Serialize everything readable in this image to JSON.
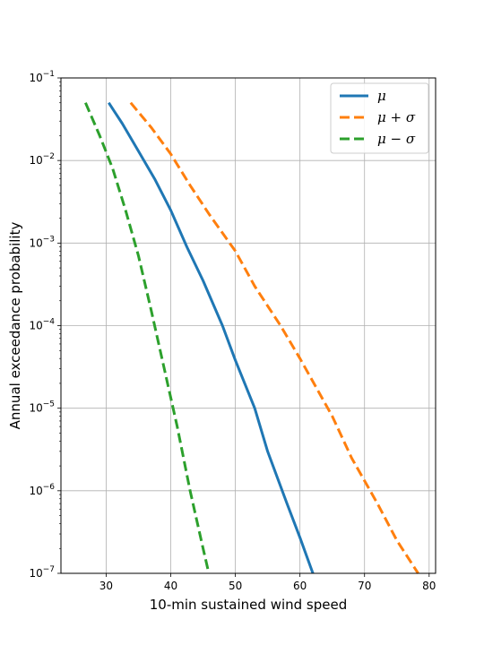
{
  "chart_data": {
    "type": "line",
    "title": "",
    "xlabel": "10-min sustained wind speed",
    "ylabel": "Annual exceedance probability",
    "xlim": [
      23,
      81
    ],
    "ylim": [
      1e-07,
      0.1
    ],
    "yscale": "log",
    "grid": true,
    "legend_position": "top-right",
    "x_ticks": [
      30,
      40,
      50,
      60,
      70,
      80
    ],
    "x_tick_labels": [
      "30",
      "40",
      "50",
      "60",
      "70",
      "80"
    ],
    "y_ticks": [
      0.1,
      0.01,
      0.001,
      0.0001,
      1e-05,
      1e-06,
      1e-07
    ],
    "y_tick_labels": [
      {
        "base": "10",
        "exp": "−1"
      },
      {
        "base": "10",
        "exp": "−2"
      },
      {
        "base": "10",
        "exp": "−3"
      },
      {
        "base": "10",
        "exp": "−4"
      },
      {
        "base": "10",
        "exp": "−5"
      },
      {
        "base": "10",
        "exp": "−6"
      },
      {
        "base": "10",
        "exp": "−7"
      }
    ],
    "series": [
      {
        "name": "μ",
        "color": "#1f77b4",
        "dash": "solid",
        "x": [
          30.4,
          32.5,
          35,
          37.5,
          40,
          42.5,
          45,
          48,
          50,
          53,
          55,
          58,
          60,
          62
        ],
        "y": [
          0.05,
          0.028,
          0.013,
          0.006,
          0.0025,
          0.0009,
          0.00035,
          0.0001,
          3.8e-05,
          1e-05,
          3e-06,
          7e-07,
          2.7e-07,
          1e-07
        ]
      },
      {
        "name": "μ + σ",
        "color": "#ff7f0e",
        "dash": "dashed",
        "x": [
          33.8,
          37,
          40,
          43,
          46,
          50,
          53,
          57,
          60,
          65,
          68,
          72,
          75,
          78.3
        ],
        "y": [
          0.05,
          0.025,
          0.012,
          0.005,
          0.0022,
          0.0008,
          0.0003,
          0.0001,
          4e-05,
          8e-06,
          2.5e-06,
          7e-07,
          2.5e-07,
          1e-07
        ]
      },
      {
        "name": "μ − σ",
        "color": "#2ca02c",
        "dash": "dashed",
        "x": [
          26.8,
          29,
          31,
          33,
          35,
          37,
          39,
          41,
          43,
          45,
          45.9
        ],
        "y": [
          0.05,
          0.02,
          0.008,
          0.0025,
          0.0007,
          0.00015,
          3e-05,
          6e-06,
          1e-06,
          2e-07,
          1e-07
        ]
      }
    ]
  }
}
